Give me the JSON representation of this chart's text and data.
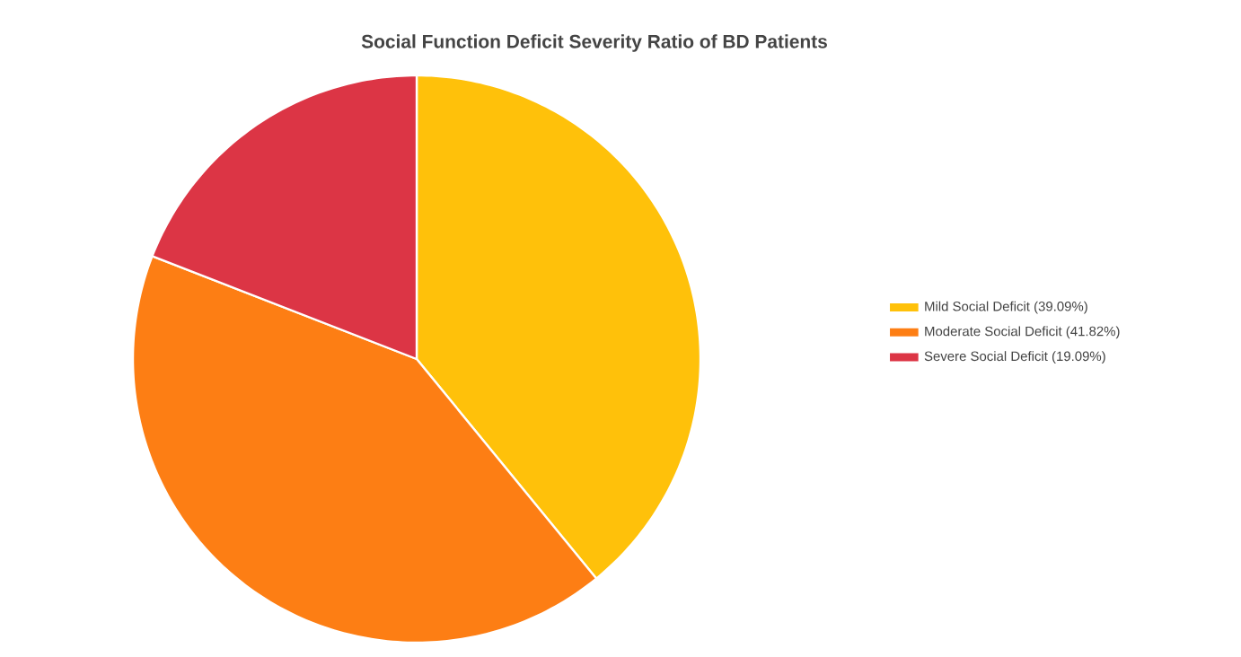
{
  "chart_data": {
    "type": "pie",
    "title": "Social Function Deficit Severity Ratio of BD Patients",
    "categories": [
      "Mild Social Deficit (39.09%)",
      "Moderate Social Deficit (41.82%)",
      "Severe Social Deficit (19.09%)"
    ],
    "values": [
      39.09,
      41.82,
      19.09
    ],
    "colors": [
      "#ffc10a",
      "#fd7e14",
      "#dc3545"
    ],
    "legend": "right"
  }
}
